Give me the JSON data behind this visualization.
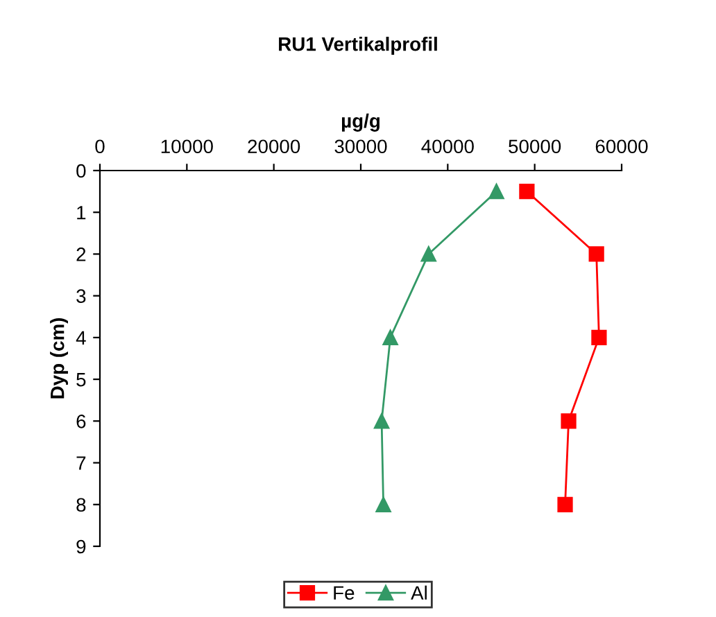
{
  "chart_data": {
    "type": "line",
    "title": "RU1 Vertikalprofil",
    "xlabel": "µg/g",
    "ylabel": "Dyp (cm)",
    "xlim": [
      0,
      60000
    ],
    "xticks": [
      0,
      10000,
      20000,
      30000,
      40000,
      50000,
      60000
    ],
    "ylim": [
      9,
      0
    ],
    "yticks": [
      0,
      1,
      2,
      3,
      4,
      5,
      6,
      7,
      8,
      9
    ],
    "grid": false,
    "legend": "bottom",
    "line_style": "solid",
    "series": [
      {
        "name": "Fe",
        "color": "#ff0000",
        "marker": "square",
        "x": [
          49100,
          57100,
          57400,
          53900,
          53500
        ],
        "values": [
          0.5,
          2,
          4,
          6,
          8
        ]
      },
      {
        "name": "Al",
        "color": "#339966",
        "marker": "triangle",
        "x": [
          45600,
          37800,
          33400,
          32400,
          32600
        ],
        "values": [
          0.5,
          2,
          4,
          6,
          8
        ]
      }
    ]
  }
}
